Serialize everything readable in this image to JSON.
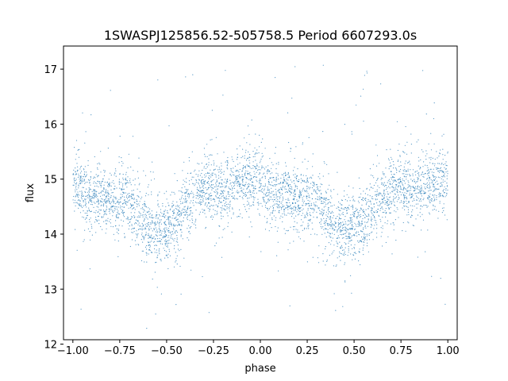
{
  "chart_data": {
    "type": "scatter",
    "title": "1SWASPJ125856.52-505758.5 Period 6607293.0s",
    "xlabel": "phase",
    "ylabel": "flux",
    "xlim": [
      -1.05,
      1.05
    ],
    "ylim": [
      12.08,
      17.42
    ],
    "x_ticks": [
      -1.0,
      -0.75,
      -0.5,
      -0.25,
      0.0,
      0.25,
      0.5,
      0.75,
      1.0
    ],
    "x_tick_labels": [
      "−1.00",
      "−0.75",
      "−0.50",
      "−0.25",
      "0.00",
      "0.25",
      "0.50",
      "0.75",
      "1.00"
    ],
    "y_ticks": [
      12,
      13,
      14,
      15,
      16,
      17
    ],
    "y_tick_labels": [
      "12",
      "13",
      "14",
      "15",
      "16",
      "17"
    ],
    "grid": false,
    "point_color": "#1f77b4",
    "phase_folded": true,
    "x_range": [
      -1.0,
      1.0
    ],
    "mean_flux_profile": {
      "phase": [
        0.0,
        0.05,
        0.1,
        0.15,
        0.2,
        0.25,
        0.3,
        0.35,
        0.4,
        0.45,
        0.5,
        0.55,
        0.6,
        0.65,
        0.7,
        0.75,
        0.8,
        0.85,
        0.9,
        0.95,
        1.0
      ],
      "flux": [
        14.95,
        14.8,
        14.72,
        14.68,
        14.62,
        14.6,
        14.55,
        14.35,
        14.15,
        14.05,
        14.1,
        14.2,
        14.45,
        14.7,
        14.85,
        14.85,
        14.82,
        14.88,
        14.95,
        15.0,
        14.95
      ]
    },
    "flux_range": [
      12.2,
      17.2
    ]
  }
}
